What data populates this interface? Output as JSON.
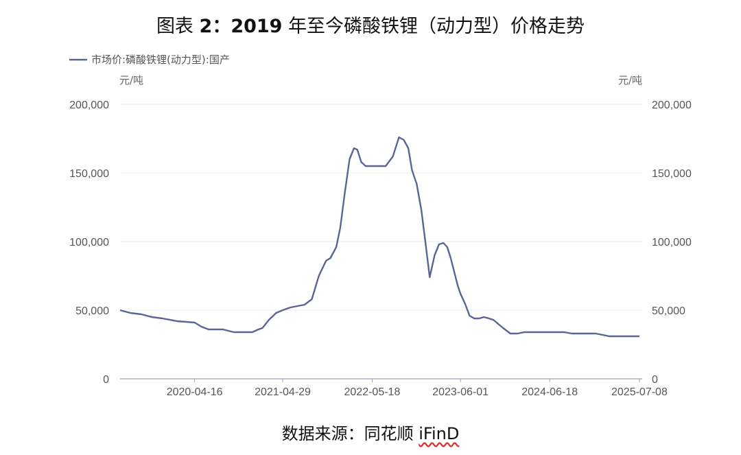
{
  "figure": {
    "title_prefix": "图表",
    "title_number": "2：2019",
    "title_rest": "年至今磷酸铁锂（动力型）价格走势",
    "source_label": "数据来源：同花顺",
    "source_brand": "iFinD"
  },
  "chart_data": {
    "type": "line",
    "series": [
      {
        "name": "市场价:磷酸铁锂(动力型):国产",
        "color": "#5b6496",
        "x": [
          "2019-06-01",
          "2019-07-15",
          "2019-09-01",
          "2019-10-15",
          "2019-12-01",
          "2020-02-01",
          "2020-04-16",
          "2020-05-15",
          "2020-06-15",
          "2020-07-01",
          "2020-08-15",
          "2020-10-01",
          "2020-11-15",
          "2020-12-20",
          "2021-01-15",
          "2021-02-01",
          "2021-03-01",
          "2021-04-01",
          "2021-04-29",
          "2021-06-01",
          "2021-07-01",
          "2021-08-01",
          "2021-09-01",
          "2021-10-01",
          "2021-11-01",
          "2021-11-20",
          "2021-12-15",
          "2022-01-01",
          "2022-01-20",
          "2022-02-10",
          "2022-03-01",
          "2022-03-15",
          "2022-04-01",
          "2022-04-20",
          "2022-05-18",
          "2022-06-20",
          "2022-07-15",
          "2022-08-15",
          "2022-09-10",
          "2022-10-01",
          "2022-10-20",
          "2022-11-05",
          "2022-11-25",
          "2022-12-15",
          "2023-01-01",
          "2023-01-20",
          "2023-02-10",
          "2023-03-01",
          "2023-03-20",
          "2023-04-05",
          "2023-04-20",
          "2023-05-05",
          "2023-05-20",
          "2023-06-01",
          "2023-06-20",
          "2023-07-10",
          "2023-07-30",
          "2023-08-20",
          "2023-09-10",
          "2023-10-01",
          "2023-10-20",
          "2023-11-10",
          "2023-12-01",
          "2024-01-01",
          "2024-02-01",
          "2024-03-01",
          "2024-04-01",
          "2024-05-01",
          "2024-06-18",
          "2024-07-20",
          "2024-08-20",
          "2024-09-20",
          "2024-10-20",
          "2024-11-20",
          "2025-01-01",
          "2025-02-01",
          "2025-03-01",
          "2025-04-01",
          "2025-05-01",
          "2025-06-01",
          "2025-07-08"
        ],
        "values": [
          50000,
          48000,
          47000,
          45000,
          44000,
          42000,
          41000,
          38000,
          36000,
          36000,
          36000,
          34000,
          34000,
          34000,
          36000,
          37000,
          43000,
          48000,
          50000,
          52000,
          53000,
          54000,
          58000,
          75000,
          86000,
          88000,
          96000,
          110000,
          135000,
          160000,
          168000,
          167000,
          158000,
          155000,
          155000,
          155000,
          155000,
          162000,
          176000,
          174000,
          168000,
          152000,
          142000,
          123000,
          100000,
          74000,
          90000,
          98000,
          99000,
          96000,
          88000,
          78000,
          68000,
          62000,
          55000,
          46000,
          44000,
          44000,
          45000,
          44000,
          43000,
          40000,
          37000,
          33000,
          33000,
          34000,
          34000,
          34000,
          34000,
          34000,
          34000,
          33000,
          33000,
          33000,
          33000,
          32000,
          31000,
          31000,
          31000,
          31000,
          31000
        ]
      }
    ],
    "x_ticks": [
      "2020-04-16",
      "2021-04-29",
      "2022-05-18",
      "2023-06-01",
      "2024-06-18",
      "2025-07-08"
    ],
    "y_ticks": [
      "0",
      "50,000",
      "100,000",
      "150,000",
      "200,000"
    ],
    "y_unit_left": "元/吨",
    "y_unit_right": "元/吨",
    "ylim": [
      0,
      200000
    ],
    "xlim": [
      "2019-06-01",
      "2025-07-20"
    ],
    "grid": true,
    "legend_position": "top-left"
  }
}
